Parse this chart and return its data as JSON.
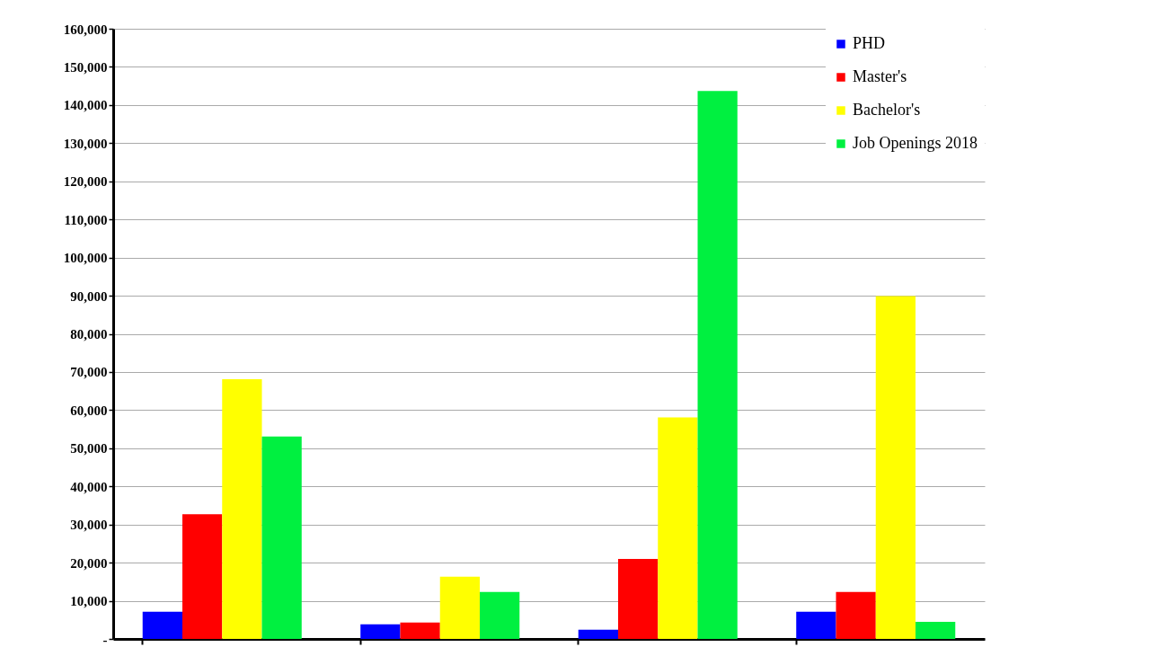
{
  "chart_data": {
    "type": "bar",
    "categories": [
      null,
      null,
      null,
      null
    ],
    "series": [
      {
        "name": "PHD",
        "color": "#0000ff",
        "values": [
          7100,
          3800,
          2400,
          7100
        ]
      },
      {
        "name": "Master's",
        "color": "#ff0000",
        "values": [
          32700,
          4300,
          21000,
          12300
        ]
      },
      {
        "name": "Bachelor's",
        "color": "#ffff00",
        "values": [
          68100,
          16300,
          58100,
          89900
        ]
      },
      {
        "name": "Job Openings 2018",
        "color": "#00f040",
        "values": [
          53100,
          12300,
          143700,
          4500
        ]
      }
    ],
    "ylim": [
      0,
      160000
    ],
    "yticks": [
      {
        "value": 0,
        "label": "-"
      },
      {
        "value": 10000,
        "label": "10,000"
      },
      {
        "value": 20000,
        "label": "20,000"
      },
      {
        "value": 30000,
        "label": "30,000"
      },
      {
        "value": 40000,
        "label": "40,000"
      },
      {
        "value": 50000,
        "label": "50,000"
      },
      {
        "value": 60000,
        "label": "60,000"
      },
      {
        "value": 70000,
        "label": "70,000"
      },
      {
        "value": 80000,
        "label": "80,000"
      },
      {
        "value": 90000,
        "label": "90,000"
      },
      {
        "value": 100000,
        "label": "100,000"
      },
      {
        "value": 110000,
        "label": "110,000"
      },
      {
        "value": 120000,
        "label": "120,000"
      },
      {
        "value": 130000,
        "label": "130,000"
      },
      {
        "value": 140000,
        "label": "140,000"
      },
      {
        "value": 150000,
        "label": "150,000"
      },
      {
        "value": 160000,
        "label": "160,000"
      }
    ],
    "grid": "y",
    "legend": "top right",
    "tick_labels": "y"
  }
}
